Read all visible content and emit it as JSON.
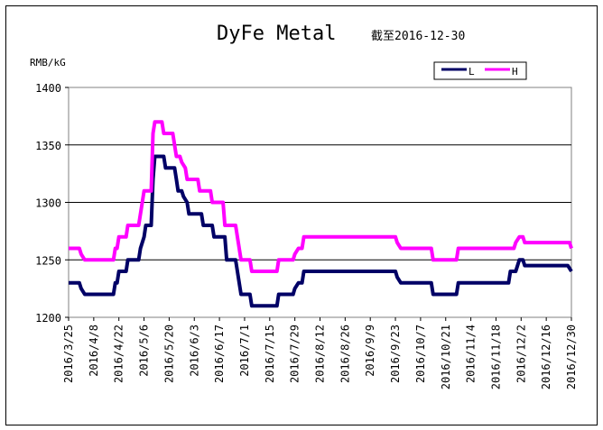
{
  "chart_data": {
    "type": "line",
    "title": "DyFe Metal",
    "subtitle": "截至2016-12-30",
    "ylabel": "RMB/kG",
    "ylim": [
      1200,
      1400
    ],
    "yticks": [
      1200,
      1250,
      1300,
      1350,
      1400
    ],
    "grid": "horizontal",
    "legend_position": "top-right",
    "x_tick_labels": [
      "2016/3/25",
      "2016/4/8",
      "2016/4/22",
      "2016/5/6",
      "2016/5/20",
      "2016/6/3",
      "2016/6/17",
      "2016/7/1",
      "2016/7/15",
      "2016/7/29",
      "2016/8/12",
      "2016/8/26",
      "2016/9/9",
      "2016/9/23",
      "2016/10/7",
      "2016/10/21",
      "2016/11/4",
      "2016/11/18",
      "2016/12/2",
      "2016/12/16",
      "2016/12/30"
    ],
    "series": [
      {
        "name": "L",
        "color": "#000066",
        "points": [
          [
            "2016/3/25",
            1230
          ],
          [
            "2016/3/31",
            1230
          ],
          [
            "2016/4/1",
            1225
          ],
          [
            "2016/4/3",
            1220
          ],
          [
            "2016/4/19",
            1220
          ],
          [
            "2016/4/20",
            1230
          ],
          [
            "2016/4/21",
            1230
          ],
          [
            "2016/4/22",
            1240
          ],
          [
            "2016/4/26",
            1240
          ],
          [
            "2016/4/27",
            1250
          ],
          [
            "2016/5/3",
            1250
          ],
          [
            "2016/5/4",
            1260
          ],
          [
            "2016/5/6",
            1270
          ],
          [
            "2016/5/7",
            1280
          ],
          [
            "2016/5/10",
            1280
          ],
          [
            "2016/5/11",
            1320
          ],
          [
            "2016/5/12",
            1340
          ],
          [
            "2016/5/17",
            1340
          ],
          [
            "2016/5/18",
            1330
          ],
          [
            "2016/5/23",
            1330
          ],
          [
            "2016/5/24",
            1320
          ],
          [
            "2016/5/25",
            1310
          ],
          [
            "2016/5/27",
            1310
          ],
          [
            "2016/5/28",
            1305
          ],
          [
            "2016/5/30",
            1300
          ],
          [
            "2016/5/31",
            1290
          ],
          [
            "2016/6/7",
            1290
          ],
          [
            "2016/6/8",
            1280
          ],
          [
            "2016/6/13",
            1280
          ],
          [
            "2016/6/14",
            1270
          ],
          [
            "2016/6/20",
            1270
          ],
          [
            "2016/6/21",
            1250
          ],
          [
            "2016/6/26",
            1250
          ],
          [
            "2016/6/27",
            1240
          ],
          [
            "2016/6/28",
            1230
          ],
          [
            "2016/6/29",
            1220
          ],
          [
            "2016/7/4",
            1220
          ],
          [
            "2016/7/5",
            1210
          ],
          [
            "2016/7/19",
            1210
          ],
          [
            "2016/7/20",
            1220
          ],
          [
            "2016/7/28",
            1220
          ],
          [
            "2016/7/29",
            1225
          ],
          [
            "2016/7/31",
            1230
          ],
          [
            "2016/8/2",
            1230
          ],
          [
            "2016/8/3",
            1240
          ],
          [
            "2016/9/23",
            1240
          ],
          [
            "2016/9/24",
            1235
          ],
          [
            "2016/9/26",
            1230
          ],
          [
            "2016/10/13",
            1230
          ],
          [
            "2016/10/14",
            1220
          ],
          [
            "2016/10/27",
            1220
          ],
          [
            "2016/10/28",
            1230
          ],
          [
            "2016/11/25",
            1230
          ],
          [
            "2016/11/26",
            1240
          ],
          [
            "2016/11/29",
            1240
          ],
          [
            "2016/12/1",
            1250
          ],
          [
            "2016/12/3",
            1250
          ],
          [
            "2016/12/4",
            1245
          ],
          [
            "2016/12/28",
            1245
          ],
          [
            "2016/12/30",
            1240
          ]
        ]
      },
      {
        "name": "H",
        "color": "#ff00ff",
        "points": [
          [
            "2016/3/25",
            1260
          ],
          [
            "2016/3/31",
            1260
          ],
          [
            "2016/4/1",
            1255
          ],
          [
            "2016/4/3",
            1250
          ],
          [
            "2016/4/19",
            1250
          ],
          [
            "2016/4/20",
            1260
          ],
          [
            "2016/4/21",
            1260
          ],
          [
            "2016/4/22",
            1270
          ],
          [
            "2016/4/26",
            1270
          ],
          [
            "2016/4/27",
            1280
          ],
          [
            "2016/5/3",
            1280
          ],
          [
            "2016/5/4",
            1290
          ],
          [
            "2016/5/6",
            1310
          ],
          [
            "2016/5/10",
            1310
          ],
          [
            "2016/5/11",
            1360
          ],
          [
            "2016/5/12",
            1370
          ],
          [
            "2016/5/16",
            1370
          ],
          [
            "2016/5/17",
            1360
          ],
          [
            "2016/5/22",
            1360
          ],
          [
            "2016/5/23",
            1350
          ],
          [
            "2016/5/24",
            1340
          ],
          [
            "2016/5/26",
            1340
          ],
          [
            "2016/5/27",
            1335
          ],
          [
            "2016/5/29",
            1330
          ],
          [
            "2016/5/30",
            1320
          ],
          [
            "2016/6/5",
            1320
          ],
          [
            "2016/6/6",
            1310
          ],
          [
            "2016/6/12",
            1310
          ],
          [
            "2016/6/13",
            1300
          ],
          [
            "2016/6/19",
            1300
          ],
          [
            "2016/6/20",
            1280
          ],
          [
            "2016/6/26",
            1280
          ],
          [
            "2016/6/27",
            1270
          ],
          [
            "2016/6/28",
            1260
          ],
          [
            "2016/6/29",
            1250
          ],
          [
            "2016/7/4",
            1250
          ],
          [
            "2016/7/5",
            1240
          ],
          [
            "2016/7/19",
            1240
          ],
          [
            "2016/7/20",
            1250
          ],
          [
            "2016/7/28",
            1250
          ],
          [
            "2016/7/29",
            1255
          ],
          [
            "2016/7/31",
            1260
          ],
          [
            "2016/8/2",
            1260
          ],
          [
            "2016/8/3",
            1270
          ],
          [
            "2016/9/23",
            1270
          ],
          [
            "2016/9/24",
            1265
          ],
          [
            "2016/9/26",
            1260
          ],
          [
            "2016/10/13",
            1260
          ],
          [
            "2016/10/14",
            1250
          ],
          [
            "2016/10/27",
            1250
          ],
          [
            "2016/10/28",
            1260
          ],
          [
            "2016/11/28",
            1260
          ],
          [
            "2016/11/29",
            1265
          ],
          [
            "2016/12/1",
            1270
          ],
          [
            "2016/12/3",
            1270
          ],
          [
            "2016/12/4",
            1265
          ],
          [
            "2016/12/29",
            1265
          ],
          [
            "2016/12/30",
            1260
          ]
        ]
      }
    ]
  }
}
